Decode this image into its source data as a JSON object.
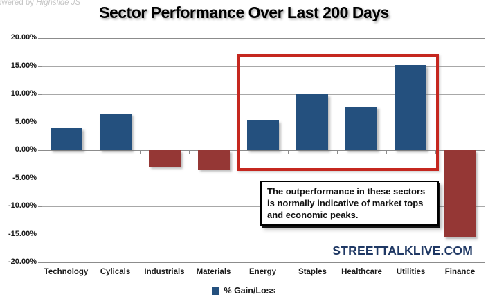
{
  "watermark": {
    "prefix": "owered by",
    "brand": "Highslide JS"
  },
  "header": {
    "title": "Sector Performance Over Last 200 Days"
  },
  "annotation": {
    "text": "The outperformance in these sectors is normally indicative of market tops and economic peaks."
  },
  "branding": {
    "text": "STREETTALKLIVE.COM",
    "color": "#1f3864"
  },
  "legend": {
    "label": "% Gain/Loss"
  },
  "colors": {
    "positive_bar": "#24507e",
    "negative_bar": "#953735",
    "highlight_box": "#c5271f",
    "gridline": "#a8a8a8"
  },
  "chart_data": {
    "type": "bar",
    "title": "Sector Performance Over Last 200 Days",
    "categories": [
      "Technology",
      "Cylicals",
      "Industrials",
      "Materials",
      "Energy",
      "Staples",
      "Healthcare",
      "Utilities",
      "Finance"
    ],
    "values": [
      4.0,
      6.5,
      -3.0,
      -3.5,
      5.3,
      10.0,
      7.8,
      15.2,
      -15.6
    ],
    "series_name": "% Gain/Loss",
    "xlabel": "",
    "ylabel": "",
    "ylim": [
      -20,
      20
    ],
    "yticks": [
      20,
      15,
      10,
      5,
      0,
      -5,
      -10,
      -15,
      -20
    ],
    "ytick_labels": [
      "20.00%",
      "15.00%",
      "10.00%",
      "5.00%",
      "0.00%",
      "-5.00%",
      "-10.00%",
      "-15.00%",
      "-20.00%"
    ],
    "grid": true,
    "legend_position": "bottom",
    "highlighted_categories": [
      "Energy",
      "Staples",
      "Healthcare",
      "Utilities"
    ]
  }
}
